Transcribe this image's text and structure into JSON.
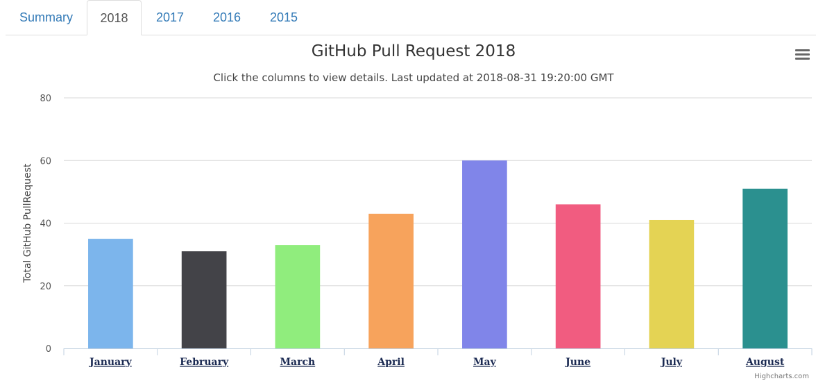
{
  "tabs": [
    {
      "label": "Summary",
      "active": false
    },
    {
      "label": "2018",
      "active": true
    },
    {
      "label": "2017",
      "active": false
    },
    {
      "label": "2016",
      "active": false
    },
    {
      "label": "2015",
      "active": false
    }
  ],
  "menu_icon": "hamburger-menu-icon",
  "credits": "Highcharts.com",
  "chart_data": {
    "type": "bar",
    "title": "GitHub Pull Request 2018",
    "subtitle": "Click the columns to view details. Last updated at 2018-08-31 19:20:00 GMT",
    "xlabel": "",
    "ylabel": "Total GitHub PullRequest",
    "ylim": [
      0,
      80
    ],
    "yticks": [
      0,
      20,
      40,
      60,
      80
    ],
    "grid": true,
    "legend": "none",
    "categories": [
      "January",
      "February",
      "March",
      "April",
      "May",
      "June",
      "July",
      "August"
    ],
    "values": [
      35,
      31,
      33,
      43,
      60,
      46,
      41,
      51
    ],
    "colors": [
      "#7cb5ec",
      "#434348",
      "#90ed7d",
      "#f7a35c",
      "#8085e9",
      "#f15c80",
      "#e4d354",
      "#2b908f"
    ]
  }
}
